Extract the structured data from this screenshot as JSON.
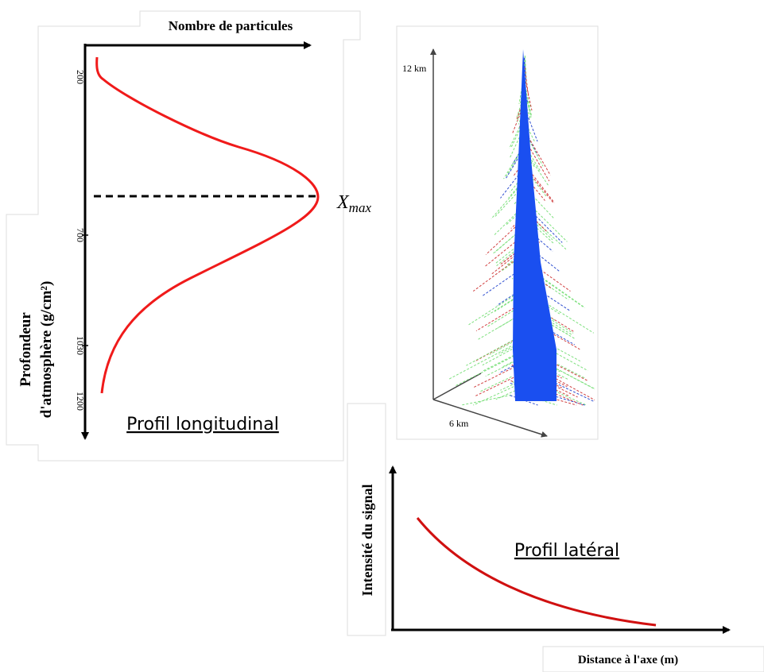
{
  "longitudinal": {
    "x_label": "Nombre de particules",
    "y_label": [
      "Profondeur",
      "d'atmosphère (g/cm²)"
    ],
    "ticks": [
      "200",
      "700",
      "1030",
      "1200"
    ],
    "xmax": {
      "base": "X",
      "sub": "max"
    },
    "caption": "Profil longitudinal"
  },
  "shower": {
    "height_label": "12 km",
    "width_label": "6 km"
  },
  "lateral": {
    "y_label": "Intensité du signal",
    "x_label": "Distance à l'axe (m)",
    "caption": "Profil latéral"
  }
}
